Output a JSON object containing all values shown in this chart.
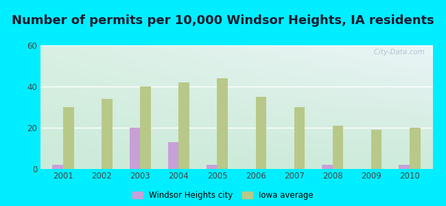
{
  "title": "Number of permits per 10,000 Windsor Heights, IA residents",
  "years": [
    2001,
    2002,
    2003,
    2004,
    2005,
    2006,
    2007,
    2008,
    2009,
    2010
  ],
  "city_values": [
    2,
    0,
    20,
    13,
    2,
    0,
    0,
    2,
    0,
    2
  ],
  "iowa_values": [
    30,
    34,
    40,
    42,
    44,
    35,
    30,
    21,
    19,
    20
  ],
  "city_color": "#c8a0d8",
  "iowa_color": "#b8c888",
  "bg_color": "#00eeff",
  "plot_bg_topleft": "#d8f0e8",
  "plot_bg_topright": "#e8f0f8",
  "plot_bg_bottom": "#c8e8d8",
  "ylim": [
    0,
    60
  ],
  "yticks": [
    0,
    20,
    40,
    60
  ],
  "bar_width": 0.28,
  "title_fontsize": 13,
  "city_label": "Windsor Heights city",
  "iowa_label": "Iowa average",
  "watermark": "   City-Data.com"
}
